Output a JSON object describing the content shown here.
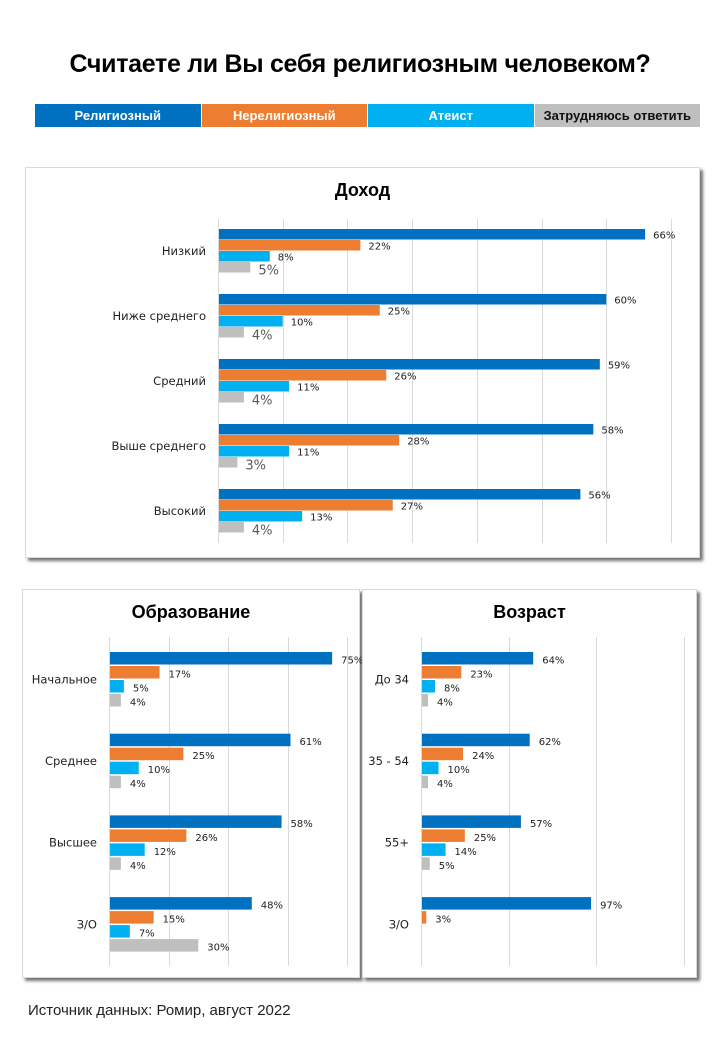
{
  "title": "Считаете ли Вы себя религиозным человеком?",
  "legend": [
    {
      "label": "Религиозный",
      "color": "#0070c0"
    },
    {
      "label": "Нерелигиозный",
      "color": "#ed7d31"
    },
    {
      "label": "Атеист",
      "color": "#00b0f0"
    },
    {
      "label": "Затрудняюсь ответить",
      "color": "#bfbfbf"
    }
  ],
  "source": "Источник данных:  Ромир, август 2022",
  "chart_data": [
    {
      "id": "income",
      "type": "bar",
      "orientation": "horizontal",
      "title": "Доход",
      "categories": [
        "Низкий",
        "Ниже среднего",
        "Средний",
        "Выше среднего",
        "Высокий"
      ],
      "series": [
        {
          "name": "Религиозный",
          "values": [
            66,
            60,
            59,
            58,
            56
          ]
        },
        {
          "name": "Нерелигиозный",
          "values": [
            22,
            25,
            26,
            28,
            27
          ]
        },
        {
          "name": "Атеист",
          "values": [
            8,
            10,
            11,
            11,
            13
          ]
        },
        {
          "name": "Затрудняюсь ответить",
          "values": [
            5,
            4,
            4,
            3,
            4
          ]
        }
      ],
      "value_format": "{v}%",
      "xlim": [
        0,
        70
      ],
      "gridline_step": 10,
      "grid": true,
      "axis_tick_labels_shown": false
    },
    {
      "id": "education",
      "type": "bar",
      "orientation": "horizontal",
      "title": "Образование",
      "categories": [
        "Начальное",
        "Среднее",
        "Высшее",
        "З/О"
      ],
      "series": [
        {
          "name": "Религиозный",
          "values": [
            75,
            61,
            58,
            48
          ]
        },
        {
          "name": "Нерелигиозный",
          "values": [
            17,
            25,
            26,
            15
          ]
        },
        {
          "name": "Атеист",
          "values": [
            5,
            10,
            12,
            7
          ]
        },
        {
          "name": "Затрудняюсь ответить",
          "values": [
            4,
            4,
            4,
            30
          ]
        }
      ],
      "value_format": "{v}%",
      "xlim": [
        0,
        80
      ],
      "gridline_step": 20,
      "grid": true,
      "axis_tick_labels_shown": false
    },
    {
      "id": "age",
      "type": "bar",
      "orientation": "horizontal",
      "title": "Возраст",
      "categories": [
        "До 34",
        "35 - 54",
        "55+",
        "З/О"
      ],
      "series": [
        {
          "name": "Религиозный",
          "values": [
            64,
            62,
            57,
            97
          ]
        },
        {
          "name": "Нерелигиозный",
          "values": [
            23,
            24,
            25,
            3
          ]
        },
        {
          "name": "Атеист",
          "values": [
            8,
            10,
            14,
            null
          ]
        },
        {
          "name": "Затрудняюсь ответить",
          "values": [
            4,
            4,
            5,
            null
          ]
        }
      ],
      "value_format": "{v}%",
      "xlim": [
        0,
        150
      ],
      "gridline_step": 50,
      "grid": true,
      "axis_tick_labels_shown": false
    }
  ]
}
